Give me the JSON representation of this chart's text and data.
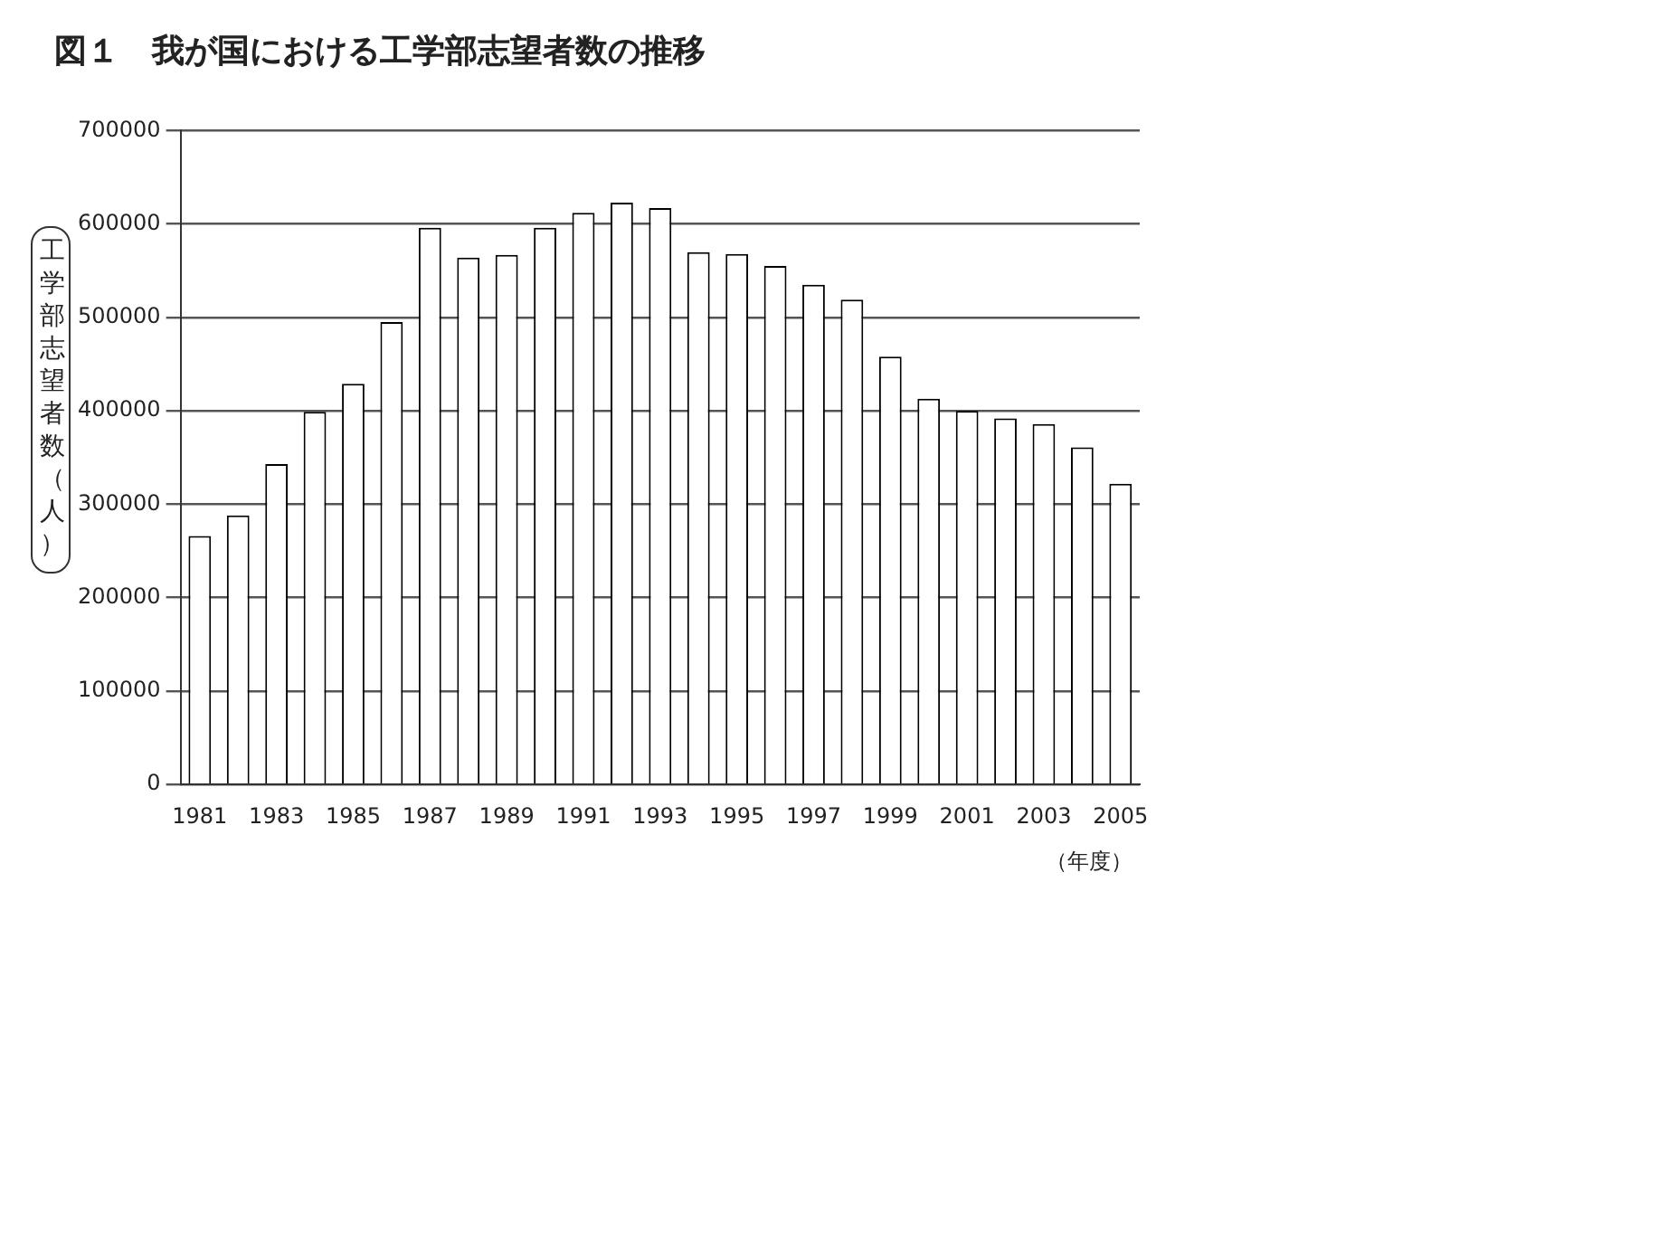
{
  "chart_data": {
    "type": "bar",
    "title": "図１　我が国における工学部志望者数の推移",
    "ylabel": "工学部志望者数（人）",
    "xlabel": "（年度）",
    "categories": [
      "1981",
      null,
      "1983",
      null,
      "1985",
      null,
      "1987",
      null,
      "1989",
      null,
      "1991",
      null,
      "1993",
      null,
      "1995",
      null,
      "1997",
      null,
      "1999",
      null,
      "2001",
      null,
      "2003",
      null,
      "2005"
    ],
    "values": [
      266000,
      288000,
      343000,
      399000,
      429000,
      495000,
      596000,
      564000,
      567000,
      596000,
      612000,
      623000,
      617000,
      570000,
      568000,
      555000,
      535000,
      519000,
      458000,
      413000,
      400000,
      392000,
      386000,
      361000,
      322000
    ],
    "color": "#ffffff",
    "ylim": [
      0,
      700000
    ],
    "yticks": [
      0,
      100000,
      200000,
      300000,
      400000,
      500000,
      600000,
      700000
    ],
    "grid": "y",
    "legend": false
  }
}
